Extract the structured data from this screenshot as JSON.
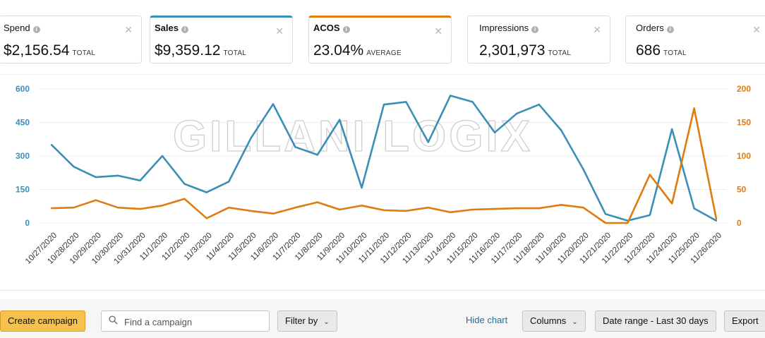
{
  "metrics": [
    {
      "label": "Spend",
      "value": "$2,156.54",
      "suffix": "TOTAL",
      "state": "none"
    },
    {
      "label": "Sales",
      "value": "$9,359.12",
      "suffix": "TOTAL",
      "state": "blue"
    },
    {
      "label": "ACOS",
      "value": "23.04%",
      "suffix": "AVERAGE",
      "state": "orange"
    },
    {
      "label": "Impressions",
      "value": "2,301,973",
      "suffix": "TOTAL",
      "state": "none"
    },
    {
      "label": "Orders",
      "value": "686",
      "suffix": "TOTAL",
      "state": "none"
    }
  ],
  "icons": {
    "info": "info-icon",
    "close": "close-icon",
    "search": "search-icon",
    "chevron": "chevron-down-icon"
  },
  "colors": {
    "sales": "#3a8fb7",
    "acos": "#e07b10",
    "primary_button": "#f6c24b"
  },
  "chart_data": {
    "type": "line",
    "watermark": "GILLANI LOGIX",
    "categories": [
      "10/27/2020",
      "10/28/2020",
      "10/29/2020",
      "10/30/2020",
      "10/31/2020",
      "11/1/2020",
      "11/2/2020",
      "11/3/2020",
      "11/4/2020",
      "11/5/2020",
      "11/6/2020",
      "11/7/2020",
      "11/8/2020",
      "11/9/2020",
      "11/10/2020",
      "11/11/2020",
      "11/12/2020",
      "11/13/2020",
      "11/14/2020",
      "11/15/2020",
      "11/16/2020",
      "11/17/2020",
      "11/18/2020",
      "11/19/2020",
      "11/20/2020",
      "11/21/2020",
      "11/22/2020",
      "11/23/2020",
      "11/24/2020",
      "11/25/2020",
      "11/26/2020"
    ],
    "y_left": {
      "ticks": [
        0,
        150,
        300,
        450,
        600
      ],
      "range": [
        0,
        600
      ]
    },
    "y_right": {
      "ticks": [
        0,
        50,
        100,
        150,
        200
      ],
      "range": [
        0,
        200
      ]
    },
    "series": [
      {
        "key": "sales",
        "axis": "left",
        "values": [
          350,
          252,
          205,
          212,
          190,
          300,
          175,
          137,
          185,
          380,
          532,
          340,
          305,
          462,
          158,
          530,
          542,
          362,
          570,
          542,
          405,
          490,
          530,
          415,
          240,
          40,
          10,
          35,
          420,
          65,
          10
        ]
      },
      {
        "key": "acos",
        "axis": "right",
        "values": [
          22,
          23,
          34,
          23,
          21,
          26,
          36,
          7,
          23,
          18,
          14,
          23,
          31,
          20,
          26,
          19,
          18,
          23,
          16,
          20,
          21,
          22,
          22,
          27,
          23,
          0,
          0,
          72,
          29,
          171,
          6
        ]
      }
    ],
    "grid": true
  },
  "toolbar": {
    "create_label": "Create campaign",
    "search_placeholder": "Find a campaign",
    "filter_label": "Filter by",
    "hide_chart_label": "Hide chart",
    "columns_label": "Columns",
    "date_range_label": "Date range - Last 30 days",
    "export_label": "Export"
  }
}
